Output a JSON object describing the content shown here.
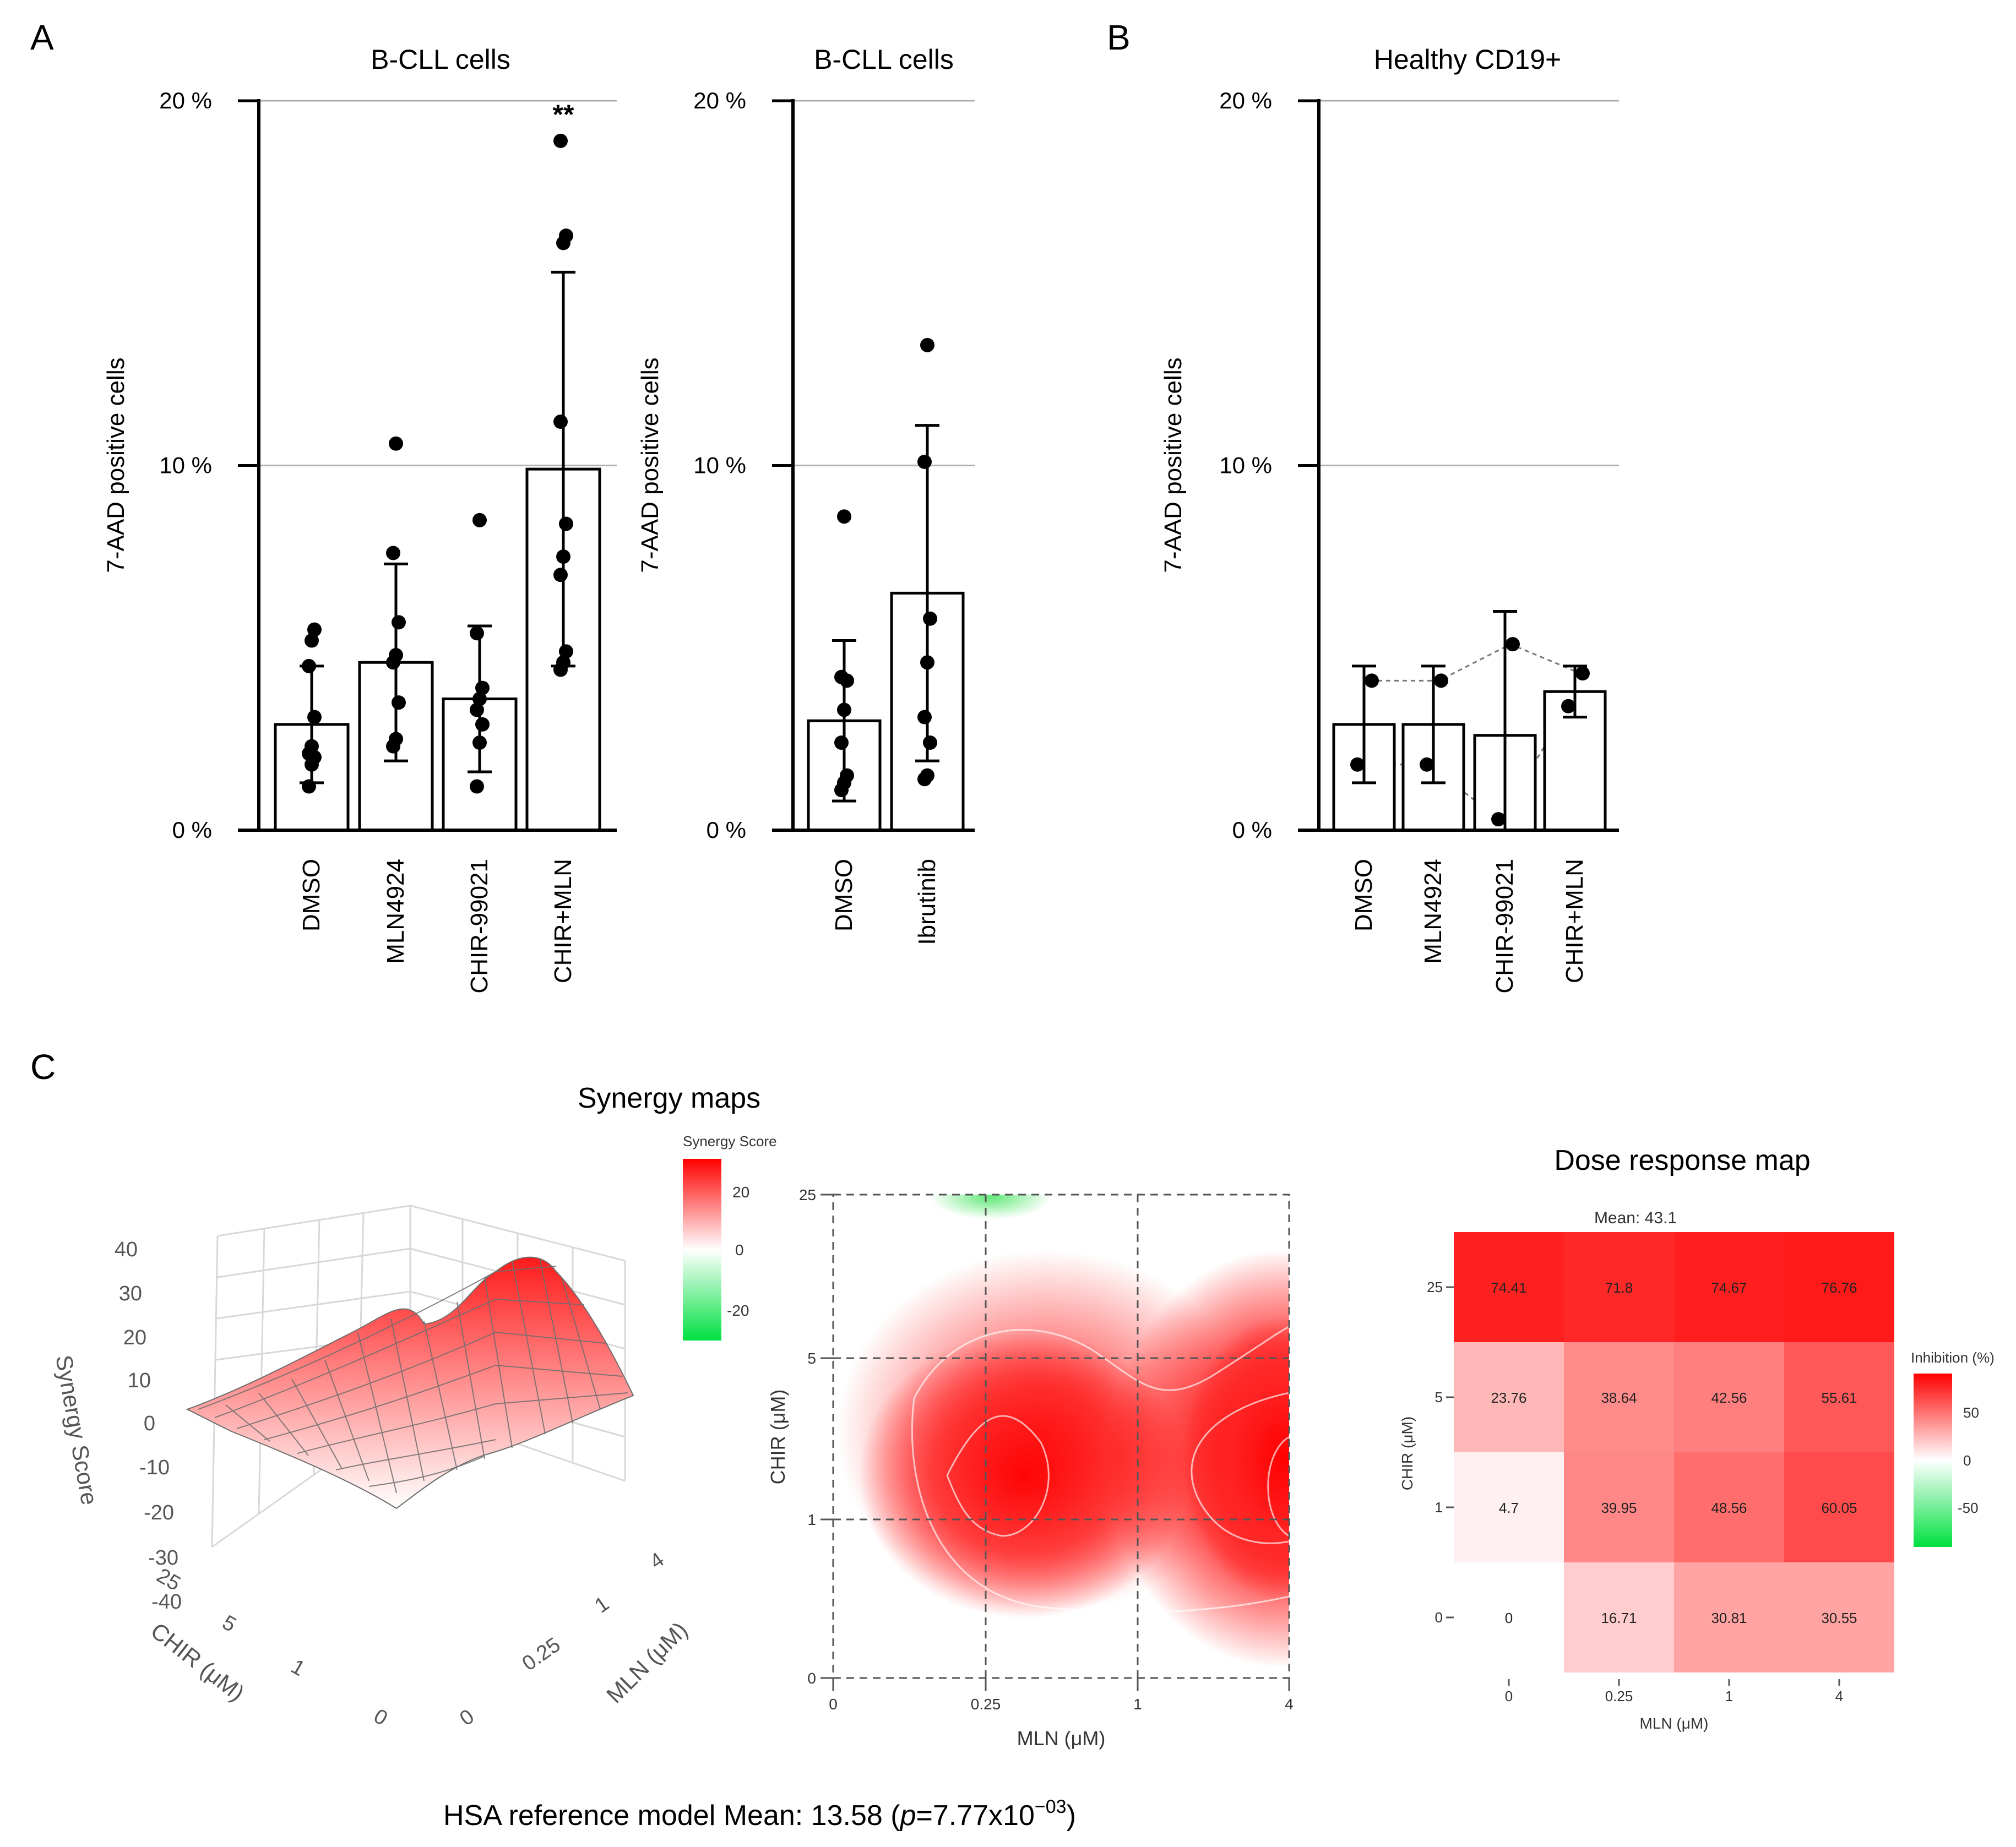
{
  "panel_labels": {
    "a": "A",
    "b": "B",
    "c": "C"
  },
  "colors": {
    "bar_fill": "#ffffff",
    "bar_stroke": "#000000",
    "grid": "#b0b0b0",
    "heat_high": "#ff0000",
    "heat_low": "#00e040"
  },
  "chart_data": [
    {
      "id": "bcll-main",
      "type": "bar",
      "title": "B-CLL cells",
      "ylabel": "7-AAD positive cells",
      "yticks": [
        "0 %",
        "10 %",
        "20 %"
      ],
      "ylim": [
        0,
        20
      ],
      "categories": [
        "DMSO",
        "MLN4924",
        "CHIR-99021",
        "CHIR+MLN"
      ],
      "values": [
        2.9,
        4.6,
        3.6,
        9.9
      ],
      "errors": [
        1.6,
        2.7,
        2.0,
        5.4
      ],
      "points": [
        [
          1.2,
          1.8,
          2.0,
          2.1,
          2.3,
          3.1,
          4.5,
          5.2,
          5.5
        ],
        [
          2.3,
          2.5,
          3.5,
          4.6,
          4.8,
          5.7,
          7.6,
          10.6
        ],
        [
          1.2,
          2.4,
          2.9,
          3.3,
          3.6,
          3.9,
          5.4,
          8.5
        ],
        [
          4.4,
          4.6,
          4.9,
          7.0,
          7.5,
          8.4,
          11.2,
          16.1,
          16.3,
          18.9
        ]
      ],
      "annotations": [
        {
          "category": "CHIR+MLN",
          "text": "**"
        }
      ]
    },
    {
      "id": "bcll-ibrutinib",
      "type": "bar",
      "title": "B-CLL cells",
      "ylabel": "7-AAD positive cells",
      "yticks": [
        "0 %",
        "10 %",
        "20 %"
      ],
      "ylim": [
        0,
        20
      ],
      "categories": [
        "DMSO",
        "Ibrutinib"
      ],
      "values": [
        3.0,
        6.5
      ],
      "errors": [
        2.2,
        4.6
      ],
      "points": [
        [
          1.1,
          1.3,
          1.5,
          2.4,
          3.3,
          4.1,
          4.2,
          8.6
        ],
        [
          1.4,
          1.5,
          2.4,
          3.1,
          4.6,
          5.8,
          10.1,
          13.3
        ]
      ]
    },
    {
      "id": "healthy-cd19",
      "type": "bar",
      "title": "Healthy CD19+",
      "ylabel": "7-AAD positive cells",
      "yticks": [
        "0 %",
        "10 %",
        "20 %"
      ],
      "ylim": [
        0,
        20
      ],
      "categories": [
        "DMSO",
        "MLN4924",
        "CHIR-99021",
        "CHIR+MLN"
      ],
      "values": [
        2.9,
        2.9,
        2.6,
        3.8
      ],
      "errors": [
        1.6,
        1.6,
        3.4,
        0.7
      ],
      "points": [
        [
          4.1,
          1.8
        ],
        [
          4.1,
          1.8
        ],
        [
          5.1,
          0.3
        ],
        [
          4.3,
          3.4
        ]
      ],
      "paired_lines": true
    },
    {
      "id": "synergy-3d",
      "type": "surface",
      "title": "Synergy maps",
      "zlabel": "Synergy Score",
      "zticks": [
        "40",
        "30",
        "20",
        "10",
        "0",
        "-10",
        "-20",
        "-30",
        "-40"
      ],
      "xlabel": "CHIR (μM)",
      "x_ticks": [
        "25",
        "5",
        "1",
        "0"
      ],
      "ylabel": "MLN (μM)",
      "y_ticks": [
        "0",
        "0.25",
        "1",
        "4"
      ]
    },
    {
      "id": "synergy-2d",
      "type": "heatmap",
      "legend_title": "Synergy Score",
      "legend_ticks": [
        "20",
        "0",
        "-20"
      ],
      "xlabel": "MLN (μM)",
      "x": [
        "0",
        "0.25",
        "1",
        "4"
      ],
      "ylabel": "CHIR (μM)",
      "y": [
        "0",
        "1",
        "5",
        "25"
      ],
      "caption": {
        "prefix": "HSA reference model Mean: 13.58 (",
        "p": "p",
        "middle": "=7.77x10",
        "exp": "−03",
        "suffix": ")"
      }
    },
    {
      "id": "dose-response",
      "type": "heatmap",
      "title": "Dose response map",
      "subtitle": "Mean: 43.1",
      "xlabel": "MLN (μM)",
      "x": [
        "0",
        "0.25",
        "1",
        "4"
      ],
      "ylabel": "CHIR (μM)",
      "y": [
        "25",
        "5",
        "1",
        "0"
      ],
      "values": [
        [
          "74.41",
          "71.8",
          "74.67",
          "76.76"
        ],
        [
          "23.76",
          "38.64",
          "42.56",
          "55.61"
        ],
        [
          "4.7",
          "39.95",
          "48.56",
          "60.05"
        ],
        [
          "0",
          "16.71",
          "30.81",
          "30.55"
        ]
      ],
      "legend_title": "Inhibition (%)",
      "legend_ticks": [
        "50",
        "0",
        "-50"
      ]
    }
  ]
}
